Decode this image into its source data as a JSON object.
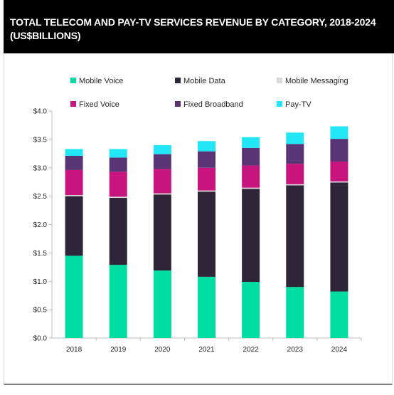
{
  "header": {
    "title": "TOTAL TELECOM AND PAY-TV SERVICES REVENUE BY CATEGORY, 2018-2024 (US$BILLIONS)"
  },
  "chart_data": {
    "type": "bar",
    "stacked": true,
    "title": "TOTAL TELECOM AND PAY-TV SERVICES REVENUE BY CATEGORY, 2018-2024 (US$BILLIONS)",
    "categories": [
      "2018",
      "2019",
      "2020",
      "2021",
      "2022",
      "2023",
      "2024"
    ],
    "ylim": [
      0,
      4.0
    ],
    "yticks": [
      "$0.0",
      "$0.5",
      "$1.0",
      "$1.5",
      "$2.0",
      "$2.5",
      "$3.0",
      "$3.5",
      "$4.0"
    ],
    "legend_position": "top",
    "grid": false,
    "series": [
      {
        "name": "Mobile Voice",
        "color": "#00DDA2",
        "values": [
          1.45,
          1.29,
          1.19,
          1.08,
          0.99,
          0.9,
          0.82
        ]
      },
      {
        "name": "Mobile Data",
        "color": "#2E2638",
        "values": [
          1.05,
          1.18,
          1.34,
          1.5,
          1.64,
          1.79,
          1.92
        ]
      },
      {
        "name": "Mobile Messaging",
        "color": "#D9D9D9",
        "values": [
          0.02,
          0.02,
          0.02,
          0.02,
          0.02,
          0.02,
          0.02
        ]
      },
      {
        "name": "Fixed Voice",
        "color": "#C8157D",
        "values": [
          0.44,
          0.44,
          0.43,
          0.4,
          0.39,
          0.36,
          0.35
        ]
      },
      {
        "name": "Fixed Broadband",
        "color": "#5A3575",
        "values": [
          0.25,
          0.25,
          0.26,
          0.29,
          0.31,
          0.35,
          0.4
        ]
      },
      {
        "name": "Pay-TV",
        "color": "#22E5F5",
        "values": [
          0.12,
          0.15,
          0.16,
          0.18,
          0.19,
          0.2,
          0.22
        ]
      }
    ]
  }
}
